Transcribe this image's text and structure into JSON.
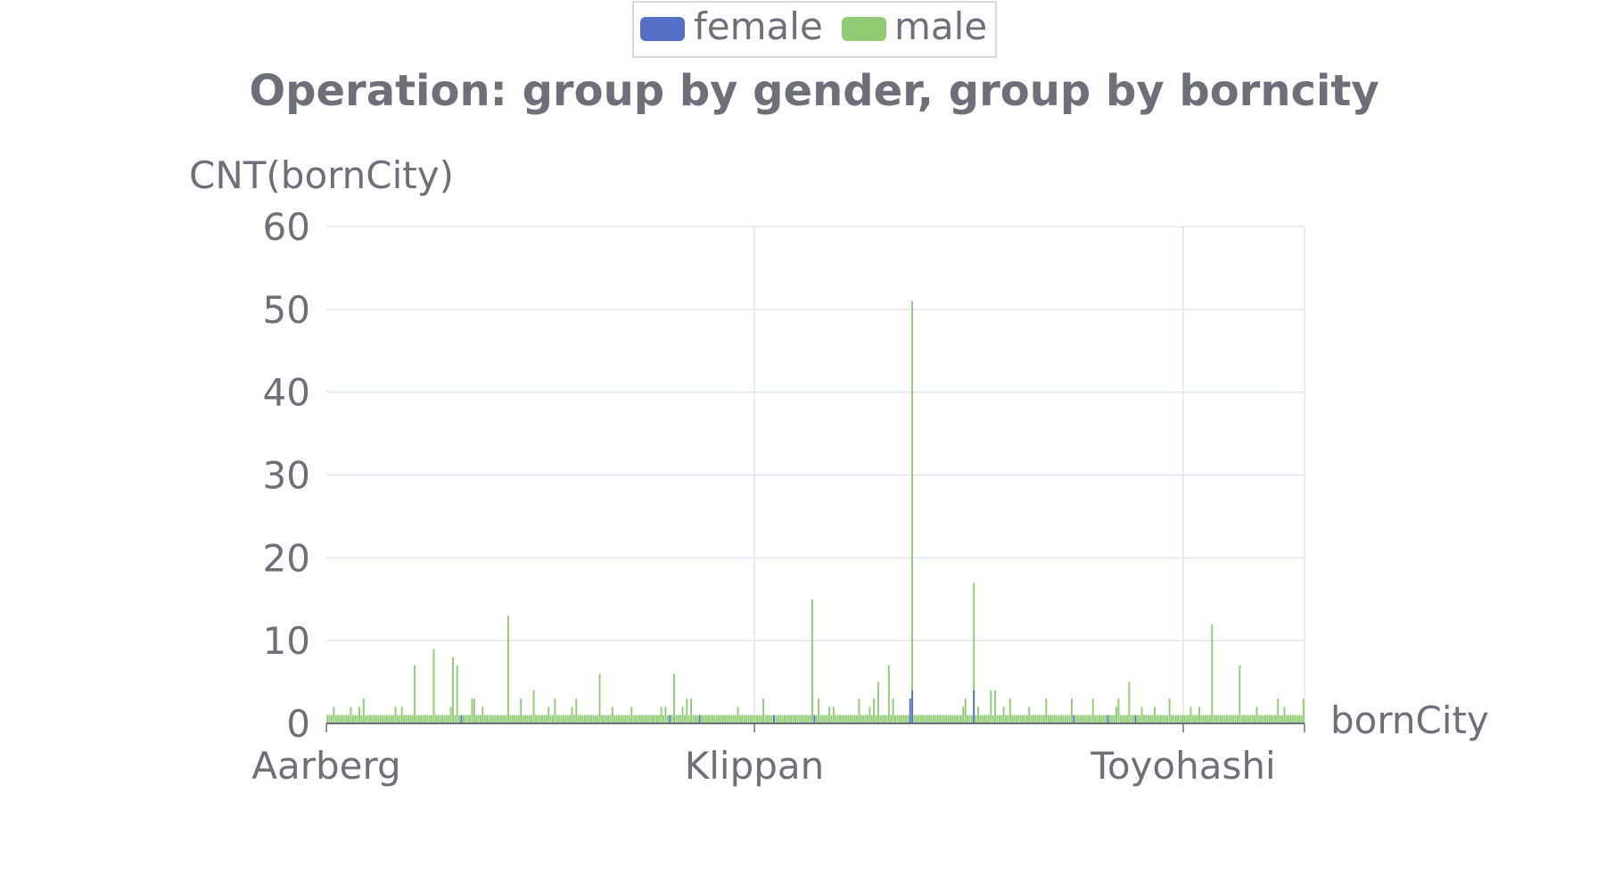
{
  "chart_data": {
    "type": "bar",
    "title": "Operation: group by gender, group by borncity",
    "ylabel": "CNT(bornCity)",
    "xlabel": "bornCity",
    "ylim": [
      0,
      60
    ],
    "yticks": [
      "0",
      "10",
      "20",
      "30",
      "40",
      "50",
      "60"
    ],
    "xticks": [
      "Aarberg",
      "Klippan",
      "Toyohashi"
    ],
    "grid": true,
    "legend": "top-center",
    "category_count": 460,
    "series": [
      {
        "name": "female",
        "color": "#5470c6",
        "baseline": 1,
        "values": {
          "63": 1,
          "161": 1,
          "175": 1,
          "210": 1,
          "229": 1,
          "257": 1,
          "351": 1,
          "367": 1,
          "380": 1,
          "406": 1,
          "450": 1
        }
      },
      {
        "name": "male",
        "color": "#91cc75",
        "baseline": 1,
        "values": {
          "3": 2,
          "11": 2,
          "15": 2,
          "17": 3,
          "32": 2,
          "35": 2,
          "41": 7,
          "50": 9,
          "58": 2,
          "59": 8,
          "61": 7,
          "68": 3,
          "69": 3,
          "73": 2,
          "85": 13,
          "91": 3,
          "97": 4,
          "104": 2,
          "107": 3,
          "115": 2,
          "117": 3,
          "128": 6,
          "134": 2,
          "143": 2,
          "157": 2,
          "159": 2,
          "163": 6,
          "167": 2,
          "169": 3,
          "171": 3,
          "193": 2,
          "205": 3,
          "228": 15,
          "231": 3,
          "236": 2,
          "238": 2,
          "250": 3,
          "255": 2,
          "257": 3,
          "259": 5,
          "264": 7,
          "266": 3,
          "274": 3,
          "275": 51,
          "299": 2,
          "300": 3,
          "304": 17,
          "306": 2,
          "312": 4,
          "314": 4,
          "318": 2,
          "321": 3,
          "330": 2,
          "338": 3,
          "350": 3,
          "360": 3,
          "371": 2,
          "372": 3,
          "377": 5,
          "383": 2,
          "389": 2,
          "396": 3,
          "406": 2,
          "410": 2,
          "416": 12,
          "429": 7,
          "437": 2,
          "447": 3,
          "450": 2,
          "459": 3
        }
      }
    ]
  }
}
